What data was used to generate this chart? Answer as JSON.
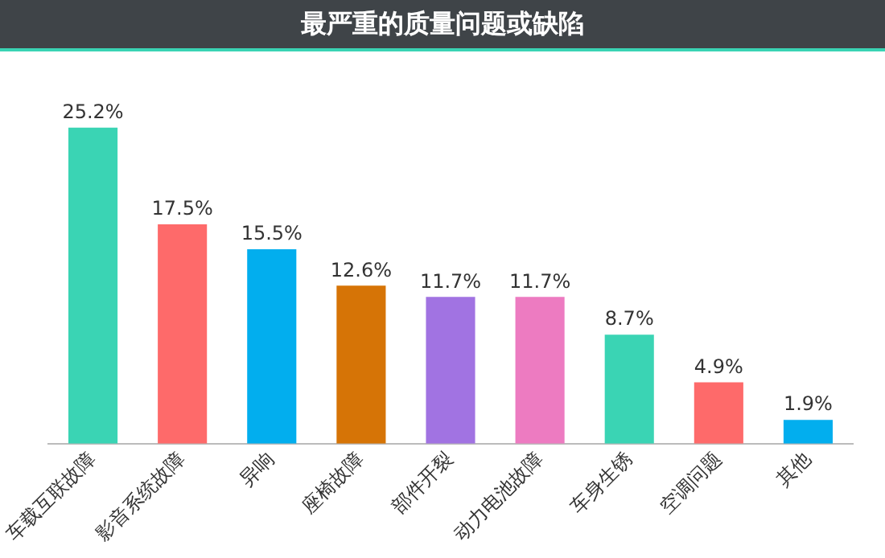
{
  "chart_data": {
    "type": "bar",
    "title": "最严重的质量问题或缺陷",
    "categories": [
      "车载互联故障",
      "影音系统故障",
      "异响",
      "座椅故障",
      "部件开裂",
      "动力电池故障",
      "车身生锈",
      "空调问题",
      "其他"
    ],
    "values": [
      25.2,
      17.5,
      15.5,
      12.6,
      11.7,
      11.7,
      8.7,
      4.9,
      1.9
    ],
    "colors": [
      "#3ad4b4",
      "#fe6a6a",
      "#02aeee",
      "#d67406",
      "#a173e2",
      "#ed7bc1",
      "#3ad4b4",
      "#fe6a6a",
      "#02aeee"
    ],
    "value_labels": [
      "25.2%",
      "17.5%",
      "15.5%",
      "12.6%",
      "11.7%",
      "11.7%",
      "8.7%",
      "4.9%",
      "1.9%"
    ],
    "legend": false,
    "grid": false
  }
}
